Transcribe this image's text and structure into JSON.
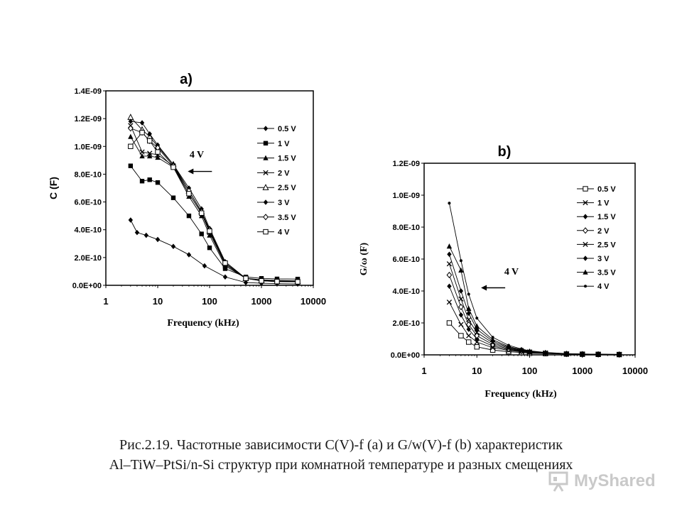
{
  "caption": {
    "line1": "Рис.2.19. Частотные зависимости C(V)-f  (a) и G/w(V)-f (b) характеристик",
    "line2": "Al–TiW–PtSi/n-Si структур при комнатной температуре и разных  смещениях"
  },
  "watermark": {
    "text": "MyShared",
    "icon": "presentation-board-icon"
  },
  "colors": {
    "ink": "#000000",
    "background": "#ffffff"
  },
  "chart_data": [
    {
      "id": "a",
      "panel_label": "a)",
      "type": "line",
      "xscale": "log",
      "xlabel": "Frequency (kHz)",
      "ylabel": "C (F)",
      "xlim": [
        1,
        10000
      ],
      "ylim": [
        0,
        1.4e-09
      ],
      "xtick_labels": [
        "1",
        "10",
        "100",
        "1000",
        "10000"
      ],
      "xtick_values": [
        1,
        10,
        100,
        1000,
        10000
      ],
      "ytick_labels": [
        "0.0E+00",
        "2.0E-10",
        "4.0E-10",
        "6.0E-10",
        "8.0E-10",
        "1.0E-09",
        "1.2E-09",
        "1.4E-09"
      ],
      "ytick_values": [
        0,
        2e-10,
        4e-10,
        6e-10,
        8e-10,
        1e-09,
        1.2e-09,
        1.4e-09
      ],
      "annotation": {
        "text": "4 V",
        "arrow": "left",
        "at_x": 38,
        "at_y": 8.2e-10
      },
      "legend_position": "right",
      "series": [
        {
          "name": "0.5 V",
          "marker": "diamond",
          "x": [
            3,
            4,
            6,
            10,
            20,
            40,
            80,
            200,
            500,
            1000,
            2000,
            5000
          ],
          "values": [
            4.7e-10,
            3.8e-10,
            3.6e-10,
            3.3e-10,
            2.8e-10,
            2.2e-10,
            1.4e-10,
            6e-11,
            2e-11,
            1.5e-11,
            1.2e-11,
            1e-11
          ]
        },
        {
          "name": "1 V",
          "marker": "square",
          "x": [
            3,
            5,
            7,
            10,
            20,
            40,
            70,
            100,
            200,
            500,
            1000,
            2000,
            5000
          ],
          "values": [
            8.6e-10,
            7.5e-10,
            7.6e-10,
            7.4e-10,
            6.3e-10,
            5e-10,
            3.7e-10,
            2.7e-10,
            1.2e-10,
            6e-11,
            5e-11,
            4.6e-11,
            4.5e-11
          ]
        },
        {
          "name": "1.5 V",
          "marker": "triangle",
          "x": [
            3,
            5,
            7,
            10,
            20,
            40,
            70,
            100,
            200,
            500,
            1000,
            2000,
            5000
          ],
          "values": [
            1.07e-09,
            9.3e-10,
            9.3e-10,
            9.2e-10,
            8.5e-10,
            6.4e-10,
            5e-10,
            3.6e-10,
            1.4e-10,
            5e-11,
            4e-11,
            3.5e-11,
            3.2e-11
          ]
        },
        {
          "name": "2 V",
          "marker": "x",
          "x": [
            3,
            5,
            7,
            10,
            20,
            40,
            70,
            100,
            200,
            500,
            1000,
            2000,
            5000
          ],
          "values": [
            1.15e-09,
            9.6e-10,
            9.5e-10,
            9.4e-10,
            8.6e-10,
            6.6e-10,
            5.2e-10,
            3.8e-10,
            1.5e-10,
            5e-11,
            3.6e-11,
            3.2e-11,
            3e-11
          ]
        },
        {
          "name": "2.5 V",
          "marker": "triangle-open",
          "x": [
            3,
            5,
            7,
            10,
            20,
            40,
            70,
            100,
            200,
            500,
            1000,
            2000,
            5000
          ],
          "values": [
            1.21e-09,
            1.12e-09,
            1.07e-09,
            1e-09,
            8.7e-10,
            6.8e-10,
            5.3e-10,
            3.9e-10,
            1.6e-10,
            5e-11,
            3.5e-11,
            3e-11,
            2.8e-11
          ]
        },
        {
          "name": "3 V",
          "marker": "diamond",
          "x": [
            3,
            5,
            7,
            10,
            20,
            40,
            70,
            100,
            200,
            500,
            1000,
            2000,
            5000
          ],
          "values": [
            1.18e-09,
            1.17e-09,
            1.09e-09,
            1.01e-09,
            8.7e-10,
            7e-10,
            5.5e-10,
            4.1e-10,
            1.7e-10,
            5e-11,
            3.3e-11,
            2.8e-11,
            2.6e-11
          ]
        },
        {
          "name": "3.5 V",
          "marker": "diamond-open",
          "x": [
            3,
            5,
            7,
            10,
            20,
            40,
            70,
            100,
            200,
            500,
            1000,
            2000,
            5000
          ],
          "values": [
            1.13e-09,
            1.1e-09,
            1.04e-09,
            9.9e-10,
            8.6e-10,
            6.8e-10,
            5.3e-10,
            4e-10,
            1.6e-10,
            5e-11,
            3.2e-11,
            2.7e-11,
            2.5e-11
          ]
        },
        {
          "name": "4 V",
          "marker": "square-open",
          "x": [
            3,
            5,
            7,
            10,
            20,
            40,
            70,
            100,
            200,
            500,
            1000,
            2000,
            5000
          ],
          "values": [
            1e-09,
            1.1e-09,
            1.04e-09,
            9.6e-10,
            8.5e-10,
            6.6e-10,
            5.2e-10,
            3.9e-10,
            1.6e-10,
            5e-11,
            3.2e-11,
            2.7e-11,
            2.5e-11
          ]
        }
      ]
    },
    {
      "id": "b",
      "panel_label": "b)",
      "type": "line",
      "xscale": "log",
      "xlabel": "Frequency (kHz)",
      "ylabel": "G/ω (F)",
      "xlim": [
        1,
        10000
      ],
      "ylim": [
        0,
        1.2e-09
      ],
      "xtick_labels": [
        "1",
        "10",
        "100",
        "1000",
        "10000"
      ],
      "xtick_values": [
        1,
        10,
        100,
        1000,
        10000
      ],
      "ytick_labels": [
        "0.0E+00",
        "2.0E-10",
        "4.0E-10",
        "6.0E-10",
        "8.0E-10",
        "1.0E-09",
        "1.2E-09"
      ],
      "ytick_values": [
        0,
        2e-10,
        4e-10,
        6e-10,
        8e-10,
        1e-09,
        1.2e-09
      ],
      "annotation": {
        "text": "4 V",
        "arrow": "left",
        "at_x": 12,
        "at_y": 4.2e-10
      },
      "legend_position": "right",
      "series": [
        {
          "name": "0.5 V",
          "marker": "square-open",
          "x": [
            3,
            5,
            7,
            10,
            20,
            40,
            70,
            100,
            200,
            500,
            1000,
            2000,
            5000
          ],
          "values": [
            2e-10,
            1.2e-10,
            8e-11,
            5e-11,
            3e-11,
            2e-11,
            1.5e-11,
            1e-11,
            8e-12,
            5e-12,
            4e-12,
            3e-12,
            2e-12
          ]
        },
        {
          "name": "1 V",
          "marker": "x",
          "x": [
            3,
            5,
            7,
            10,
            20,
            40,
            70,
            100,
            200,
            500,
            1000,
            2000,
            5000
          ],
          "values": [
            3.3e-10,
            1.9e-10,
            1.2e-10,
            8e-11,
            4.5e-11,
            2.8e-11,
            2e-11,
            1.4e-11,
            9e-12,
            5e-12,
            4e-12,
            3e-12,
            2e-12
          ]
        },
        {
          "name": "1.5 V",
          "marker": "diamond",
          "x": [
            3,
            5,
            7,
            10,
            20,
            40,
            70,
            100,
            200,
            500,
            1000,
            2000,
            5000
          ],
          "values": [
            4.3e-10,
            2.5e-10,
            1.6e-10,
            1e-10,
            5.5e-11,
            3.2e-11,
            2.2e-11,
            1.5e-11,
            1e-11,
            6e-12,
            4e-12,
            3e-12,
            2e-12
          ]
        },
        {
          "name": "2 V",
          "marker": "diamond-open",
          "x": [
            3,
            5,
            7,
            10,
            20,
            40,
            70,
            100,
            200,
            500,
            1000,
            2000,
            5000
          ],
          "values": [
            5e-10,
            3e-10,
            1.9e-10,
            1.2e-10,
            6.5e-11,
            3.7e-11,
            2.5e-11,
            1.7e-11,
            1.1e-11,
            6e-12,
            4e-12,
            3e-12,
            2e-12
          ]
        },
        {
          "name": "2.5 V",
          "marker": "x",
          "x": [
            3,
            5,
            7,
            10,
            20,
            40,
            70,
            100,
            200,
            500,
            1000,
            2000,
            5000
          ],
          "values": [
            5.7e-10,
            3.5e-10,
            2.2e-10,
            1.4e-10,
            7.5e-11,
            4.2e-11,
            2.7e-11,
            1.9e-11,
            1.2e-11,
            6e-12,
            4e-12,
            3e-12,
            2e-12
          ]
        },
        {
          "name": "3 V",
          "marker": "diamond",
          "x": [
            3,
            5,
            7,
            10,
            20,
            40,
            70,
            100,
            200,
            500,
            1000,
            2000,
            5000
          ],
          "values": [
            6.3e-10,
            4e-10,
            2.6e-10,
            1.6e-10,
            8.5e-11,
            4.7e-11,
            3e-11,
            2e-11,
            1.3e-11,
            7e-12,
            5e-12,
            3e-12,
            2e-12
          ]
        },
        {
          "name": "3.5 V",
          "marker": "triangle",
          "x": [
            3,
            5,
            7,
            10,
            20,
            40,
            70,
            100,
            200,
            500,
            1000,
            2000,
            5000
          ],
          "values": [
            6.8e-10,
            5.3e-10,
            2.9e-10,
            1.8e-10,
            9.5e-11,
            5.2e-11,
            3.3e-11,
            2.2e-11,
            1.4e-11,
            7e-12,
            5e-12,
            4e-12,
            3e-12
          ]
        },
        {
          "name": "4 V",
          "marker": "dot",
          "x": [
            3,
            5,
            7,
            10,
            20,
            40,
            70,
            100,
            200,
            500,
            1000,
            2000,
            5000
          ],
          "values": [
            9.5e-10,
            5.9e-10,
            3.8e-10,
            2.3e-10,
            1.1e-10,
            6e-11,
            3.7e-11,
            2.5e-11,
            1.5e-11,
            8e-12,
            5e-12,
            4e-12,
            3e-12
          ]
        }
      ]
    }
  ]
}
